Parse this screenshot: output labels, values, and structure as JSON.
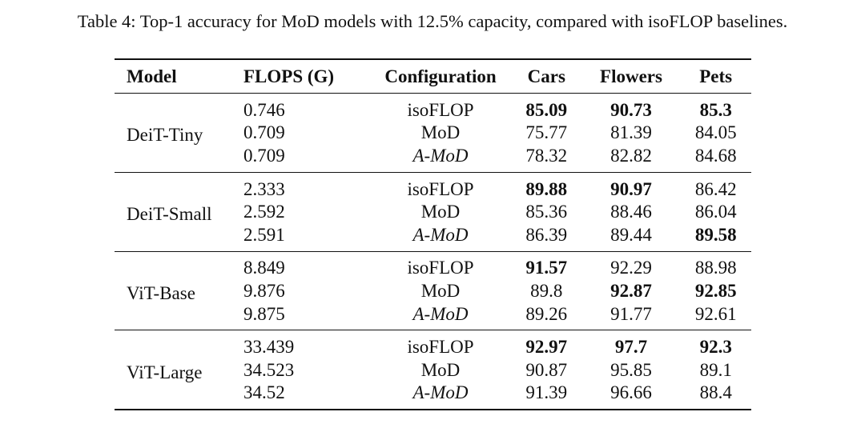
{
  "caption": "Table 4: Top-1 accuracy for MoD models with 12.5% capacity, compared with isoFLOP baselines.",
  "headers": [
    "Model",
    "FLOPS (G)",
    "Configuration",
    "Cars",
    "Flowers",
    "Pets"
  ],
  "groups": [
    {
      "model": "DeiT-Tiny",
      "rows": [
        {
          "flops": "0.746",
          "config": "isoFLOP",
          "cars": "85.09",
          "flowers": "90.73",
          "pets": "85.3"
        },
        {
          "flops": "0.709",
          "config": "MoD",
          "cars": "75.77",
          "flowers": "81.39",
          "pets": "84.05"
        },
        {
          "flops": "0.709",
          "config": "A-MoD",
          "cars": "78.32",
          "flowers": "82.82",
          "pets": "84.68"
        }
      ]
    },
    {
      "model": "DeiT-Small",
      "rows": [
        {
          "flops": "2.333",
          "config": "isoFLOP",
          "cars": "89.88",
          "flowers": "90.97",
          "pets": "86.42"
        },
        {
          "flops": "2.592",
          "config": "MoD",
          "cars": "85.36",
          "flowers": "88.46",
          "pets": "86.04"
        },
        {
          "flops": "2.591",
          "config": "A-MoD",
          "cars": "86.39",
          "flowers": "89.44",
          "pets": "89.58"
        }
      ]
    },
    {
      "model": "ViT-Base",
      "rows": [
        {
          "flops": "8.849",
          "config": "isoFLOP",
          "cars": "91.57",
          "flowers": "92.29",
          "pets": "88.98"
        },
        {
          "flops": "9.876",
          "config": "MoD",
          "cars": "89.8",
          "flowers": "92.87",
          "pets": "92.85"
        },
        {
          "flops": "9.875",
          "config": "A-MoD",
          "cars": "89.26",
          "flowers": "91.77",
          "pets": "92.61"
        }
      ]
    },
    {
      "model": "ViT-Large",
      "rows": [
        {
          "flops": "33.439",
          "config": "isoFLOP",
          "cars": "92.97",
          "flowers": "97.7",
          "pets": "92.3"
        },
        {
          "flops": "34.523",
          "config": "MoD",
          "cars": "90.87",
          "flowers": "95.85",
          "pets": "89.1"
        },
        {
          "flops": "34.52",
          "config": "A-MoD",
          "cars": "91.39",
          "flowers": "96.66",
          "pets": "88.4"
        }
      ]
    }
  ]
}
